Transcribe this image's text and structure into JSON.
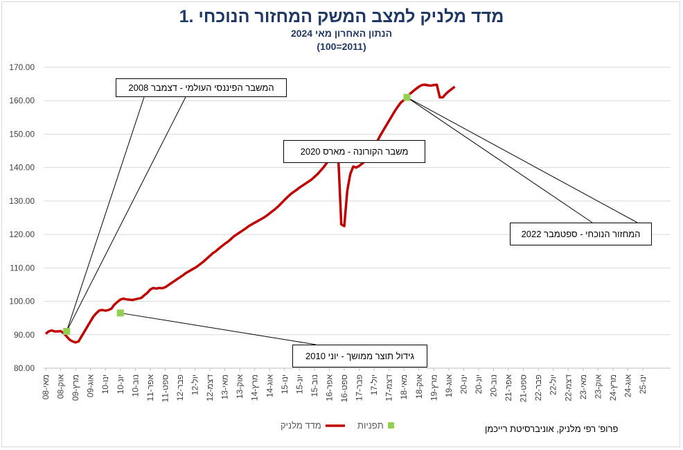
{
  "chart_data": {
    "type": "line",
    "title": "1. מדד מלניק למצב המשק המחזור הנוכחי",
    "subtitle": "הנתון האחרון מאי 2024",
    "subtitle2": "(100=2011)",
    "ylim": [
      80,
      170
    ],
    "yticks": [
      "80.00",
      "90.00",
      "100.00",
      "110.00",
      "120.00",
      "130.00",
      "140.00",
      "150.00",
      "160.00",
      "170.00"
    ],
    "xticks": [
      "מאי-08",
      "אוק-08",
      "מרץ-09",
      "אוג-09",
      "ינו-10",
      "יונ-10",
      "נוב-10",
      "אפר-11",
      "ספט-11",
      "פבר-12",
      "יול-12",
      "דצמ-12",
      "מאי-13",
      "אוק-13",
      "מרץ-14",
      "אוג-14",
      "ינו-15",
      "יונ-15",
      "נוב-15",
      "אפר-16",
      "ספט-16",
      "פבר-17",
      "יול-17",
      "דצמ-17",
      "מאי-18",
      "אוק-18",
      "מרץ-19",
      "אוג-19",
      "ינו-20",
      "יונ-20",
      "נוב-20",
      "אפר-21",
      "ספט-21",
      "פבר-22",
      "יול-22",
      "דצמ-22",
      "מאי-23",
      "אוק-23",
      "מרץ-24",
      "אוג-24",
      "ינו-25"
    ],
    "series": [
      {
        "name": "מדד מלניק",
        "color": "#c00000",
        "points": [
          [
            0,
            90.3
          ],
          [
            1,
            91.0
          ],
          [
            2,
            91.3
          ],
          [
            3,
            91.0
          ],
          [
            4,
            91.0
          ],
          [
            5,
            91.1
          ],
          [
            6,
            90.5
          ],
          [
            7,
            89.5
          ],
          [
            8,
            88.5
          ],
          [
            9,
            88.0
          ],
          [
            10,
            87.7
          ],
          [
            11,
            88.0
          ],
          [
            12,
            89.5
          ],
          [
            13,
            91.0
          ],
          [
            14,
            92.5
          ],
          [
            15,
            94.0
          ],
          [
            16,
            95.5
          ],
          [
            17,
            96.5
          ],
          [
            18,
            97.3
          ],
          [
            19,
            97.4
          ],
          [
            20,
            97.2
          ],
          [
            21,
            97.4
          ],
          [
            22,
            97.8
          ],
          [
            23,
            99.0
          ],
          [
            24,
            99.8
          ],
          [
            25,
            100.5
          ],
          [
            26,
            100.8
          ],
          [
            27,
            100.6
          ],
          [
            28,
            100.5
          ],
          [
            29,
            100.4
          ],
          [
            30,
            100.6
          ],
          [
            31,
            100.8
          ],
          [
            32,
            101.0
          ],
          [
            33,
            101.8
          ],
          [
            34,
            102.5
          ],
          [
            35,
            103.5
          ],
          [
            36,
            104.0
          ],
          [
            37,
            103.8
          ],
          [
            38,
            104.0
          ],
          [
            39,
            103.9
          ],
          [
            40,
            104.2
          ],
          [
            41,
            104.8
          ],
          [
            42,
            105.4
          ],
          [
            43,
            106.0
          ],
          [
            44,
            106.6
          ],
          [
            45,
            107.2
          ],
          [
            46,
            107.8
          ],
          [
            47,
            108.5
          ],
          [
            48,
            109.0
          ],
          [
            49,
            109.5
          ],
          [
            50,
            110.0
          ],
          [
            51,
            110.6
          ],
          [
            52,
            111.3
          ],
          [
            53,
            112.0
          ],
          [
            54,
            112.8
          ],
          [
            55,
            113.6
          ],
          [
            56,
            114.4
          ],
          [
            57,
            115.0
          ],
          [
            58,
            115.8
          ],
          [
            59,
            116.5
          ],
          [
            60,
            117.2
          ],
          [
            61,
            117.8
          ],
          [
            62,
            118.6
          ],
          [
            63,
            119.4
          ],
          [
            64,
            120.0
          ],
          [
            65,
            120.6
          ],
          [
            66,
            121.2
          ],
          [
            67,
            121.8
          ],
          [
            68,
            122.5
          ],
          [
            69,
            123.0
          ],
          [
            70,
            123.5
          ],
          [
            71,
            124.0
          ],
          [
            72,
            124.5
          ],
          [
            73,
            125.0
          ],
          [
            74,
            125.6
          ],
          [
            75,
            126.3
          ],
          [
            76,
            127.0
          ],
          [
            77,
            127.7
          ],
          [
            78,
            128.5
          ],
          [
            79,
            129.4
          ],
          [
            80,
            130.3
          ],
          [
            81,
            131.2
          ],
          [
            82,
            132.0
          ],
          [
            83,
            132.7
          ],
          [
            84,
            133.3
          ],
          [
            85,
            134.0
          ],
          [
            86,
            134.6
          ],
          [
            87,
            135.2
          ],
          [
            88,
            135.8
          ],
          [
            89,
            136.4
          ],
          [
            90,
            137.2
          ],
          [
            91,
            138.0
          ],
          [
            92,
            139.0
          ],
          [
            93,
            140.0
          ],
          [
            94,
            141.2
          ],
          [
            95,
            142.5
          ],
          [
            96,
            144.0
          ],
          [
            97,
            145.2
          ],
          [
            98,
            143.0
          ],
          [
            99,
            123.0
          ],
          [
            100,
            122.5
          ],
          [
            101,
            133.0
          ],
          [
            102,
            138.0
          ],
          [
            103,
            140.3
          ],
          [
            104,
            140.0
          ],
          [
            105,
            140.5
          ],
          [
            106,
            141.2
          ],
          [
            107,
            142.0
          ],
          [
            108,
            143.0
          ],
          [
            109,
            144.5
          ],
          [
            110,
            146.0
          ],
          [
            111,
            147.8
          ],
          [
            112,
            149.5
          ],
          [
            113,
            151.0
          ],
          [
            114,
            152.5
          ],
          [
            115,
            154.0
          ],
          [
            116,
            155.5
          ],
          [
            117,
            157.0
          ],
          [
            118,
            158.3
          ],
          [
            119,
            159.5
          ],
          [
            120,
            160.2
          ],
          [
            121,
            161.0
          ],
          [
            122,
            162.0
          ],
          [
            123,
            162.8
          ],
          [
            124,
            163.5
          ],
          [
            125,
            164.2
          ],
          [
            126,
            164.7
          ],
          [
            127,
            164.8
          ],
          [
            128,
            164.6
          ],
          [
            129,
            164.5
          ],
          [
            130,
            164.7
          ],
          [
            131,
            164.8
          ],
          [
            132,
            161.0
          ],
          [
            133,
            161.0
          ],
          [
            134,
            162.0
          ],
          [
            135,
            162.8
          ],
          [
            136,
            163.5
          ],
          [
            137,
            164.2
          ]
        ]
      },
      {
        "name": "תפניות",
        "color": "#92d050",
        "points": [
          [
            7,
            91.0
          ],
          [
            25,
            96.5
          ],
          [
            98,
            143.1
          ],
          [
            121,
            161.0
          ]
        ]
      }
    ],
    "annotations": [
      {
        "label": "המשבר הפיננסי העולמי - דצמבר 2008",
        "x": 7,
        "y": 91.0
      },
      {
        "label": "גידול תוצר ממושך - יוני 2010",
        "x": 25,
        "y": 96.5
      },
      {
        "label": "משבר הקורונה - מארס 2020",
        "x": 98,
        "y": 143.1
      },
      {
        "label": "המחזור הנוכחי - ספטמבר 2022",
        "x": 121,
        "y": 161.0
      }
    ]
  },
  "legend": {
    "series_label": "מדד מלניק",
    "turning_points_label": "תפניות"
  },
  "credit": "פרופ' רפי מלניק, אוניברסיטת רייכמן"
}
